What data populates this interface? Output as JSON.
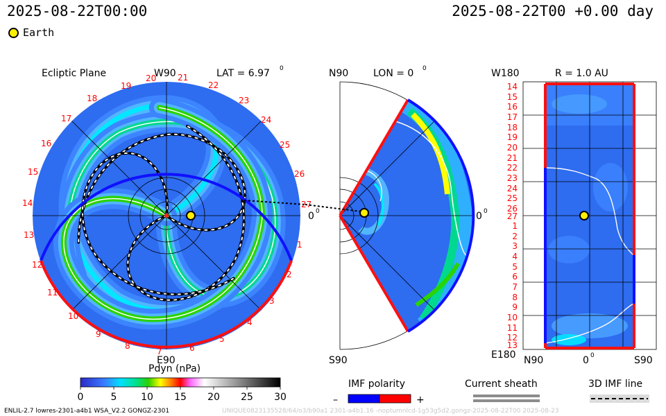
{
  "header": {
    "date_left": "2025-08-22T00:00",
    "date_right": "2025-08-22T00 +0.00 day",
    "earth_label": "Earth"
  },
  "ecliptic": {
    "title": "Ecliptic Plane",
    "top_label": "W90",
    "lat_label": "LAT = 6.97",
    "degree_mark": "0",
    "right_label": "0",
    "bottom_label": "E90",
    "rim_numbers": [
      "19",
      "20",
      "21",
      "22",
      "23",
      "24",
      "25",
      "26",
      "27",
      "1",
      "2",
      "3",
      "4",
      "5",
      "6",
      "7",
      "8",
      "9",
      "10",
      "11",
      "12",
      "13",
      "14",
      "15",
      "16",
      "17",
      "18"
    ]
  },
  "meridional": {
    "top_label": "N90",
    "lon_label": "LON = 0",
    "degree_mark": "0",
    "right_label": "0",
    "bottom_label": "S90"
  },
  "map": {
    "top_left_label": "W180",
    "title": "R = 1.0 AU",
    "bottom_left_label": "E180",
    "x_labels": [
      "N90",
      "0",
      "S90"
    ],
    "y_labels": [
      "14",
      "15",
      "16",
      "17",
      "18",
      "19",
      "20",
      "21",
      "22",
      "23",
      "24",
      "25",
      "26",
      "27",
      "1",
      "2",
      "3",
      "4",
      "5",
      "6",
      "7",
      "8",
      "9",
      "10",
      "11",
      "12",
      "13"
    ]
  },
  "colorbar": {
    "title": "Pdyn (nPa)",
    "ticks": [
      "0",
      "5",
      "10",
      "15",
      "20",
      "25",
      "30"
    ]
  },
  "legends": {
    "imf_title": "IMF polarity",
    "imf_minus": "–",
    "imf_plus": "+",
    "sheath_title": "Current sheath",
    "imf3d_title": "3D IMF line"
  },
  "footer": {
    "left": "ENLIL-2.7 lowres-2301-a4b1 WSA_V2.2 GONGZ-2301",
    "right": "UNIQUE0823135528/64/o3/b90a1 2301-a4b1.16 -noptumnlcd-1g53g5d2.gongz-2025-08-22T00    2025-08-23"
  },
  "colors": {
    "polarity_negative": "#0000ff",
    "polarity_positive": "#ff0000",
    "earth": "#ffef00",
    "rim_numbers": "#ff0000"
  }
}
